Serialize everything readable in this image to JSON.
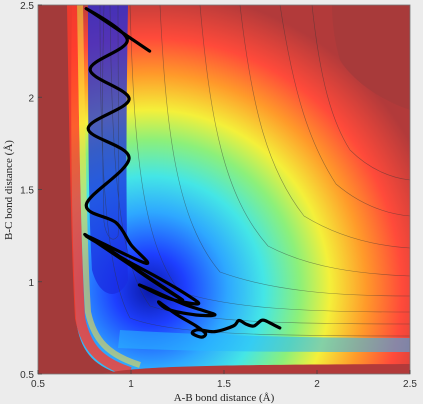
{
  "chart_data": {
    "type": "heatmap",
    "subtype": "contour-with-trajectory",
    "title": "",
    "xlabel": "A-B bond distance (Å)",
    "ylabel": "B-C bond distance (Å)",
    "xlim": [
      0.5,
      2.5
    ],
    "ylim": [
      0.5,
      2.5
    ],
    "xticks": [
      0.5,
      1,
      1.5,
      2,
      2.5
    ],
    "yticks": [
      0.5,
      1,
      1.5,
      2,
      2.5
    ],
    "xtick_labels": [
      "0.5",
      "1",
      "1.5",
      "2",
      "2.5"
    ],
    "ytick_labels": [
      "0.5",
      "1",
      "1.5",
      "2",
      "2.5"
    ],
    "colormap": "jet",
    "grid": false,
    "colors": {
      "background": "#ececec",
      "trajectory": "#000000",
      "contour_line": "#333333",
      "high_energy": "#a33a3a"
    },
    "trajectory": {
      "x": [
        1.1,
        0.76,
        0.98,
        0.78,
        0.99,
        0.77,
        0.99,
        0.76,
        0.92,
        1.0,
        1.08,
        0.76,
        0.92,
        1.05,
        1.2,
        1.25,
        0.76,
        0.95,
        1.15,
        1.3,
        1.36,
        1.2,
        1.05,
        1.1,
        1.28,
        1.4,
        1.45,
        1.35,
        1.2,
        1.15,
        1.25,
        1.35,
        1.4,
        1.38,
        1.33,
        1.36,
        1.45,
        1.55,
        1.58,
        1.62,
        1.66,
        1.7,
        1.72,
        1.76,
        1.8
      ],
      "y": [
        2.25,
        2.48,
        2.31,
        2.15,
        1.99,
        1.83,
        1.67,
        1.42,
        1.32,
        1.2,
        1.1,
        1.25,
        1.15,
        1.05,
        0.95,
        0.92,
        1.25,
        1.13,
        1.02,
        0.93,
        0.88,
        0.91,
        0.98,
        0.96,
        0.88,
        0.84,
        0.82,
        0.82,
        0.85,
        0.89,
        0.82,
        0.76,
        0.72,
        0.7,
        0.72,
        0.74,
        0.73,
        0.76,
        0.79,
        0.77,
        0.76,
        0.79,
        0.79,
        0.77,
        0.75
      ]
    }
  }
}
